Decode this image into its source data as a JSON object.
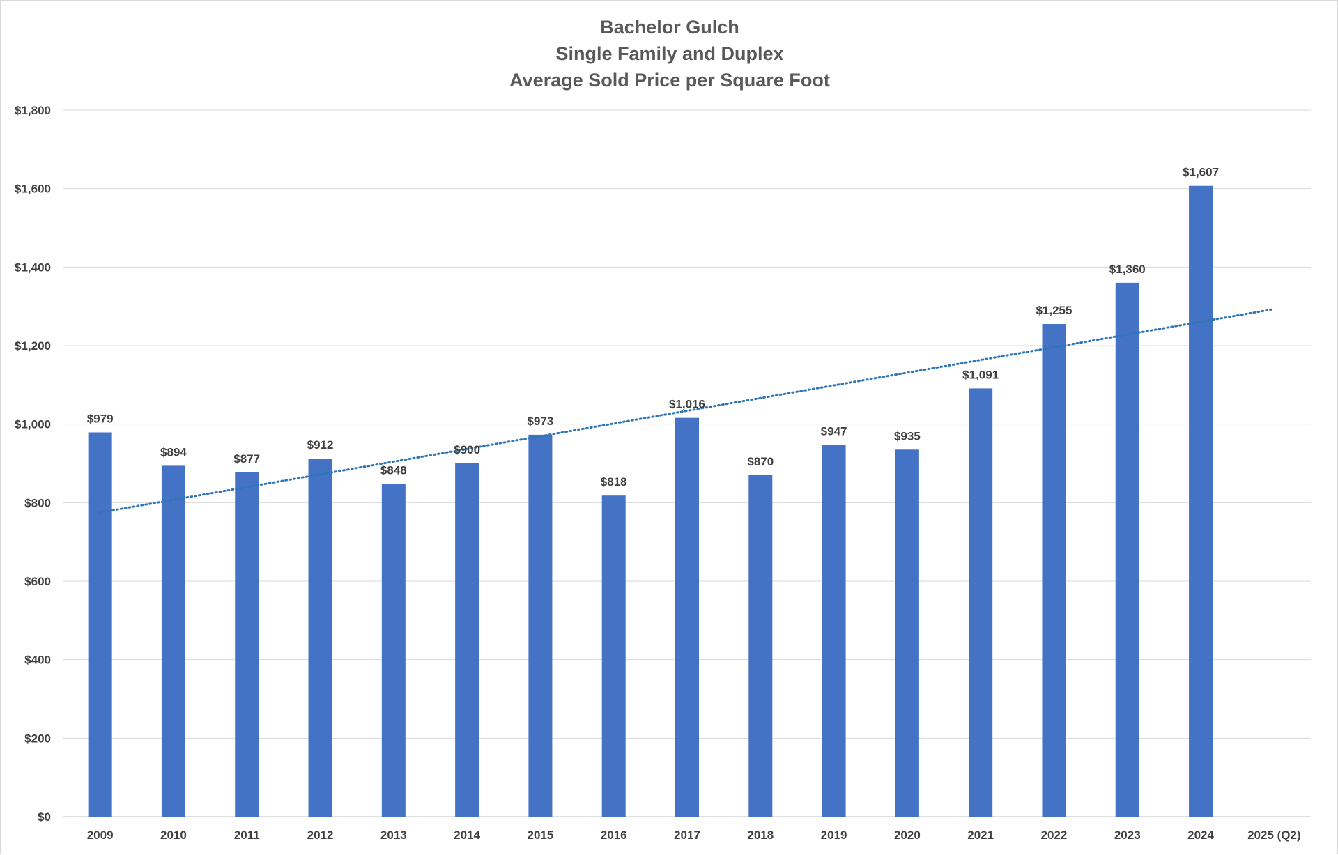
{
  "chart_data": {
    "type": "bar",
    "title": [
      "Bachelor Gulch",
      "Single Family and Duplex",
      "Average Sold Price per Square Foot"
    ],
    "xlabel": "",
    "ylabel": "",
    "categories": [
      "2009",
      "2010",
      "2011",
      "2012",
      "2013",
      "2014",
      "2015",
      "2016",
      "2017",
      "2018",
      "2019",
      "2020",
      "2021",
      "2022",
      "2023",
      "2024",
      "2025 (Q2)"
    ],
    "values": [
      979,
      894,
      877,
      912,
      848,
      900,
      973,
      818,
      1016,
      870,
      947,
      935,
      1091,
      1255,
      1360,
      1607,
      null
    ],
    "data_labels": [
      "$979",
      "$894",
      "$877",
      "$912",
      "$848",
      "$900",
      "$973",
      "$818",
      "$1,016",
      "$870",
      "$947",
      "$935",
      "$1,091",
      "$1,255",
      "$1,360",
      "$1,607",
      ""
    ],
    "ylim": [
      0,
      1800
    ],
    "y_ticks": [
      0,
      200,
      400,
      600,
      800,
      1000,
      1200,
      1400,
      1600,
      1800
    ],
    "y_tick_labels": [
      "$0",
      "$200",
      "$400",
      "$600",
      "$800",
      "$1,000",
      "$1,200",
      "$1,400",
      "$1,600",
      "$1,800"
    ],
    "grid": true,
    "legend": "none",
    "bar_color": "#4472C4",
    "trendline": {
      "type": "linear",
      "style": "dotted",
      "color": "#2E75B6",
      "start": {
        "x": "2009",
        "y": 775
      },
      "end": {
        "x": "2025 (Q2)",
        "y": 1293
      }
    }
  }
}
